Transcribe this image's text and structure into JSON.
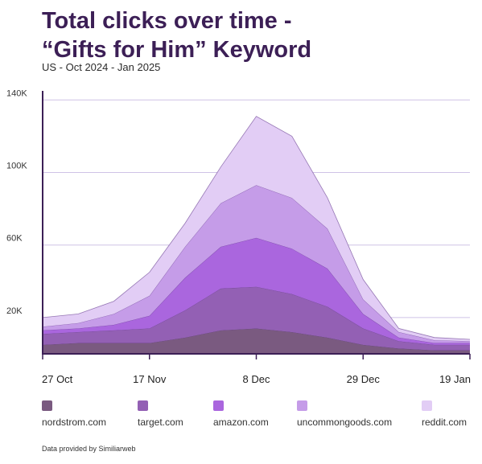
{
  "header": {
    "title": "Total clicks over time -\n“Gifts for Him” Keyword",
    "subtitle": "US - Oct 2024 - Jan 2025"
  },
  "footer": {
    "credit": "Data provided by Similiarweb"
  },
  "colors": {
    "nordstrom.com": "#7a5a80",
    "target.com": "#9360b4",
    "amazon.com": "#aa66de",
    "uncommongoods.com": "#c59ce8",
    "reddit.com": "#e2cdf5"
  },
  "chart_data": {
    "type": "area",
    "stacked": true,
    "x": [
      "2024-10-27",
      "2024-11-03",
      "2024-11-10",
      "2024-11-17",
      "2024-11-24",
      "2024-12-01",
      "2024-12-08",
      "2024-12-15",
      "2024-12-22",
      "2024-12-29",
      "2025-01-05",
      "2025-01-12",
      "2025-01-19"
    ],
    "x_tick_labels": [
      "27 Oct",
      "17 Nov",
      "8 Dec",
      "29 Dec",
      "19 Jan"
    ],
    "x_tick_positions": [
      "2024-10-27",
      "2024-11-17",
      "2024-12-08",
      "2024-12-29",
      "2025-01-19"
    ],
    "y_tick_labels": [
      "20K",
      "60K",
      "100K",
      "140K"
    ],
    "y_ticks": [
      20000,
      60000,
      100000,
      140000
    ],
    "ylim": [
      0,
      145000
    ],
    "grid": true,
    "legend_position": "bottom",
    "series": [
      {
        "name": "nordstrom.com",
        "values": [
          5000,
          6000,
          6000,
          6000,
          9000,
          13000,
          14000,
          12000,
          9000,
          5000,
          3000,
          2000,
          2000
        ]
      },
      {
        "name": "target.com",
        "values": [
          6000,
          6000,
          7000,
          8000,
          15000,
          23000,
          23000,
          21000,
          17000,
          9000,
          4000,
          3000,
          3000
        ]
      },
      {
        "name": "amazon.com",
        "values": [
          2000,
          2000,
          3000,
          7000,
          18000,
          23000,
          27000,
          25000,
          21000,
          8000,
          2000,
          1000,
          1000
        ]
      },
      {
        "name": "uncommongoods.com",
        "values": [
          2000,
          3000,
          6000,
          11000,
          17000,
          24000,
          29000,
          28000,
          22000,
          8000,
          3000,
          1500,
          1000
        ]
      },
      {
        "name": "reddit.com",
        "values": [
          5000,
          5000,
          7000,
          13000,
          13000,
          20000,
          38000,
          34000,
          17000,
          11000,
          2000,
          1500,
          1000
        ]
      }
    ]
  }
}
